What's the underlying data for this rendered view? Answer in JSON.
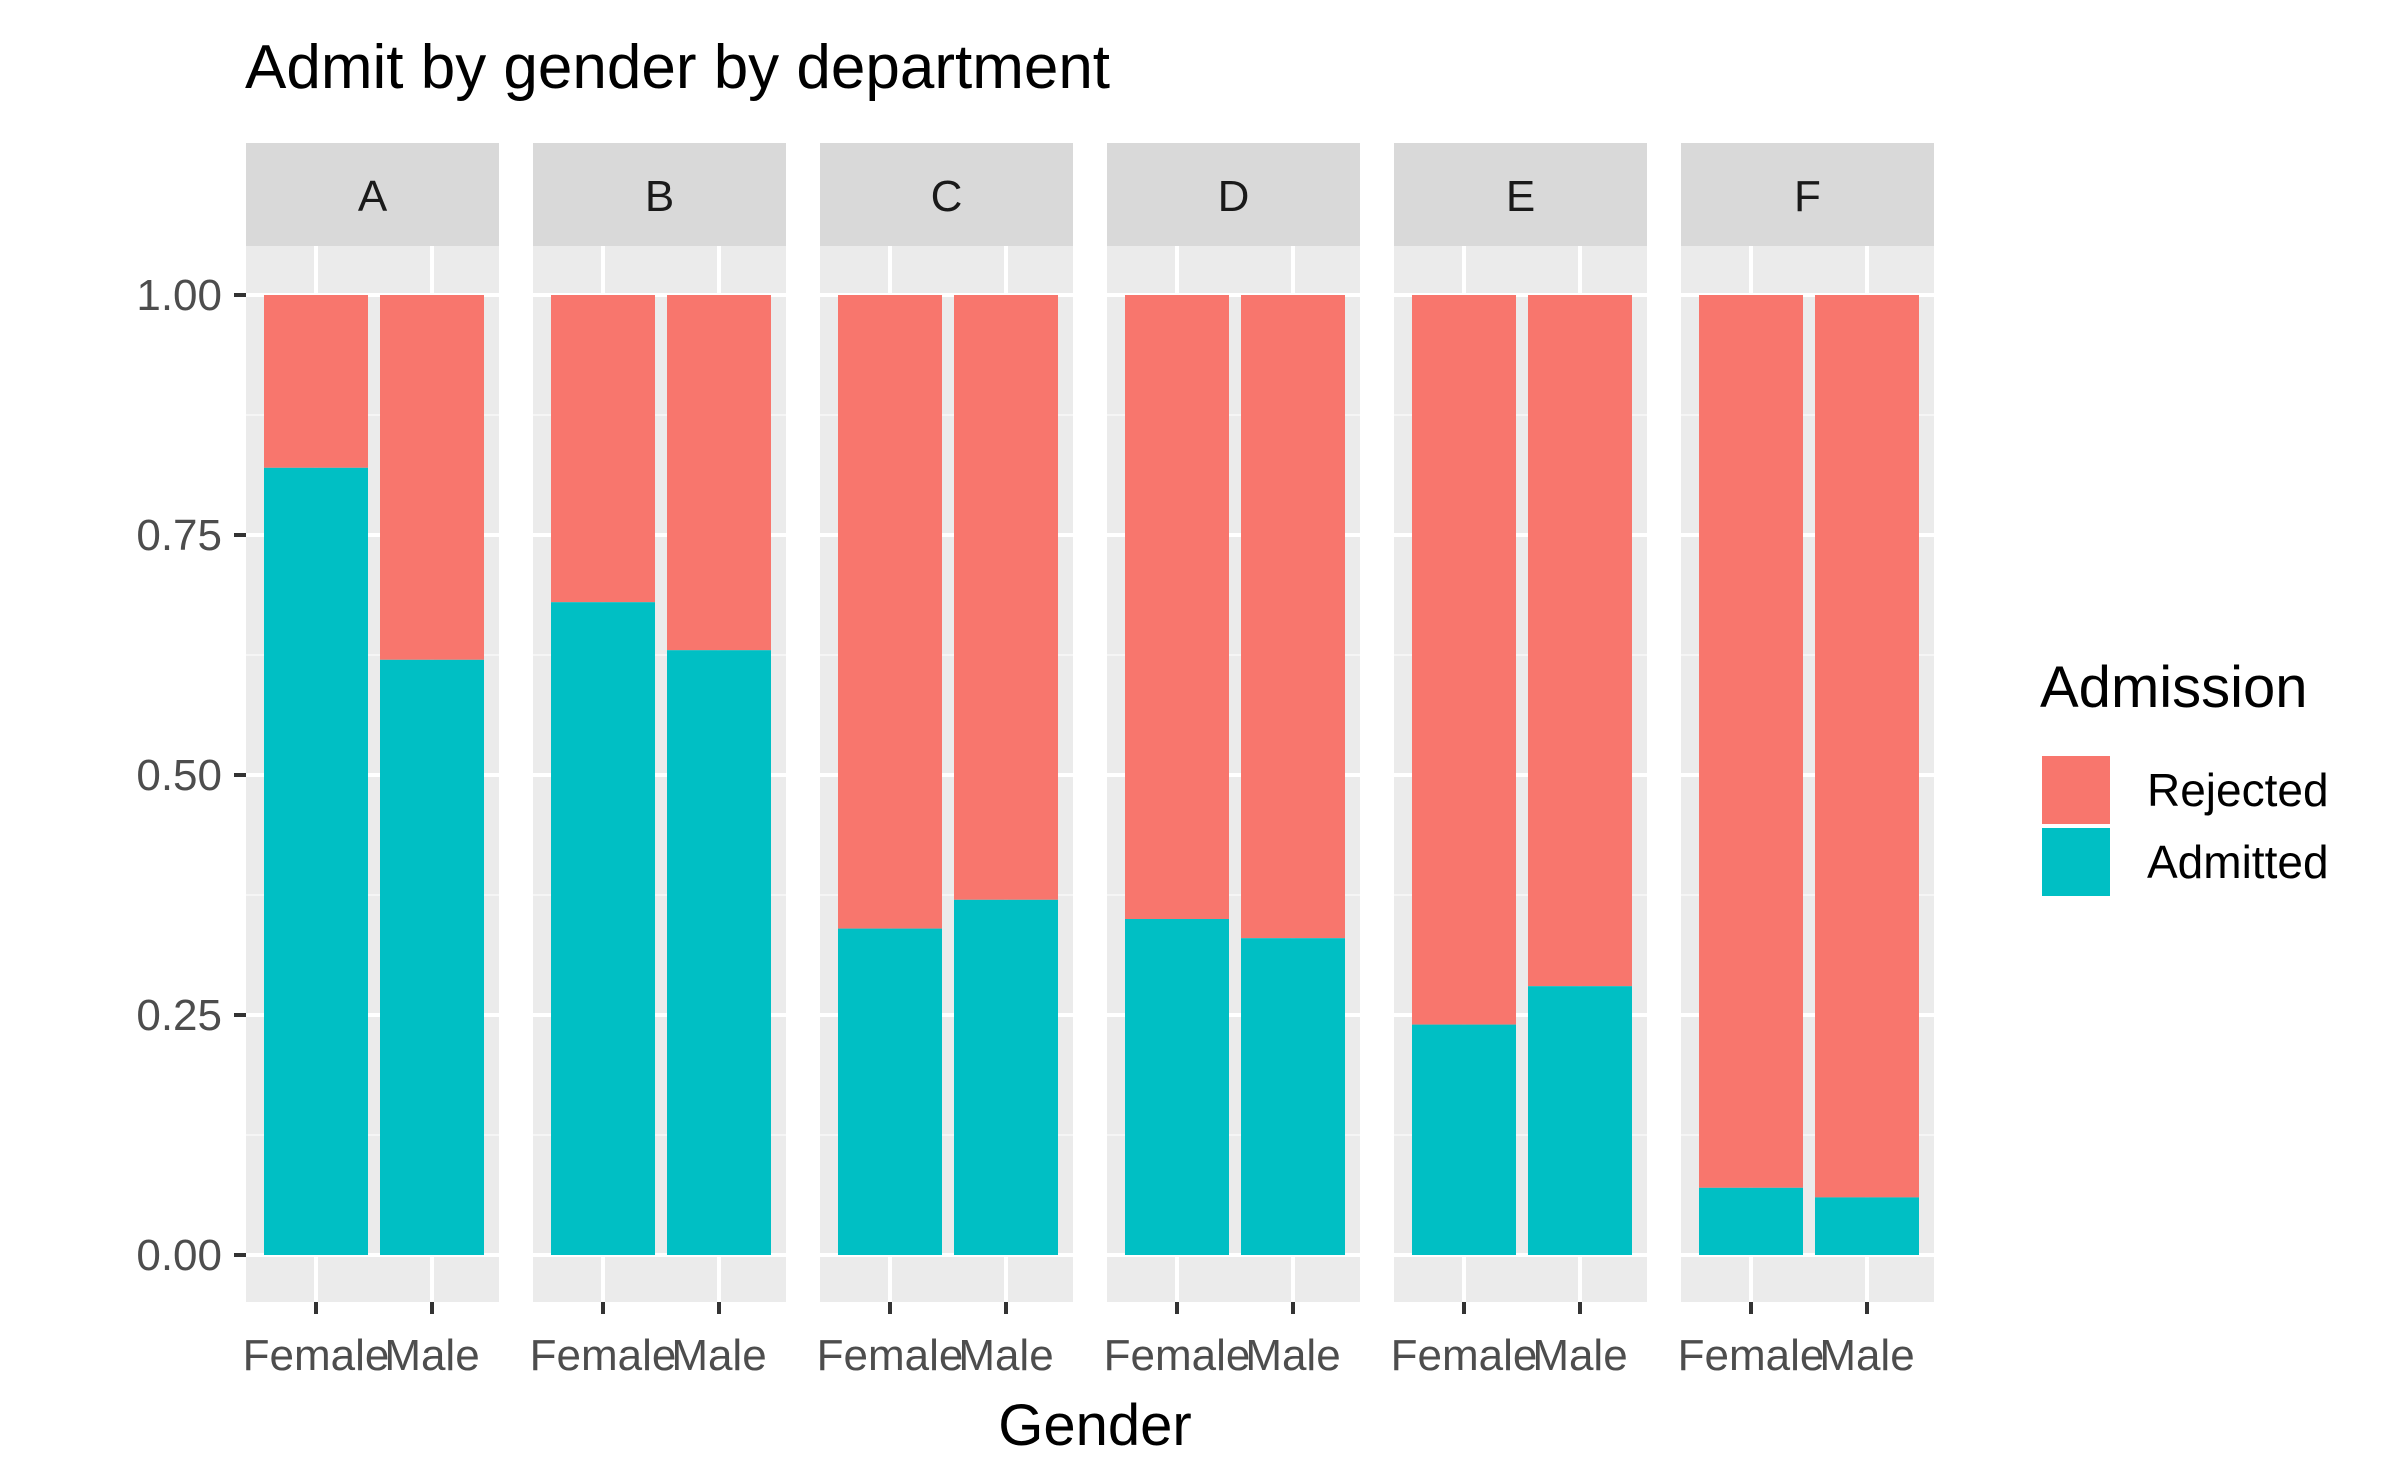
{
  "chart_data": {
    "type": "bar",
    "stacked": true,
    "title": "Admit by gender by department",
    "xlabel": "Gender",
    "ylabel": "",
    "ylim": [
      0,
      1.05
    ],
    "y_ticks": [
      "0.00",
      "0.25",
      "0.50",
      "0.75",
      "1.00"
    ],
    "y_tick_values": [
      0,
      0.25,
      0.5,
      0.75,
      1.0
    ],
    "categories": [
      "Female",
      "Male"
    ],
    "facets": [
      "A",
      "B",
      "C",
      "D",
      "E",
      "F"
    ],
    "series": [
      {
        "name": "Admitted",
        "color": "#00BFC4",
        "values": {
          "A": [
            0.82,
            0.62
          ],
          "B": [
            0.68,
            0.63
          ],
          "C": [
            0.34,
            0.37
          ],
          "D": [
            0.35,
            0.33
          ],
          "E": [
            0.24,
            0.28
          ],
          "F": [
            0.07,
            0.06
          ]
        }
      },
      {
        "name": "Rejected",
        "color": "#F8766D",
        "values": {
          "A": [
            0.18,
            0.38
          ],
          "B": [
            0.32,
            0.37
          ],
          "C": [
            0.66,
            0.63
          ],
          "D": [
            0.65,
            0.67
          ],
          "E": [
            0.76,
            0.72
          ],
          "F": [
            0.93,
            0.94
          ]
        }
      }
    ],
    "legend": {
      "title": "Admission",
      "position": "right",
      "entries": [
        {
          "label": "Rejected",
          "color": "#F8766D"
        },
        {
          "label": "Admitted",
          "color": "#00BFC4"
        }
      ]
    },
    "grid": true
  }
}
